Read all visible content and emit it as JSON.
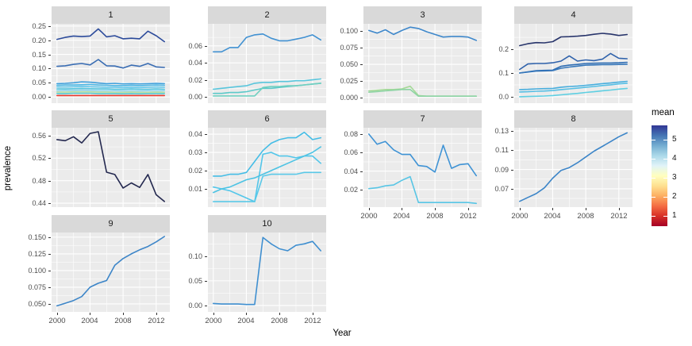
{
  "figure": {
    "ylabel": "prevalence",
    "xlabel": "Year"
  },
  "legend": {
    "title": "mean",
    "tick_labels": [
      "5",
      "4",
      "3",
      "2",
      "1"
    ],
    "gradient_top_to_bottom": [
      "#313695",
      "#4575b4",
      "#74add1",
      "#abd9e9",
      "#e0f3f8",
      "#ffffbf",
      "#fee090",
      "#fdae61",
      "#f46d43",
      "#d73027",
      "#a50026"
    ]
  },
  "chart_data": {
    "type": "line",
    "title": "",
    "xlabel": "Year",
    "ylabel": "prevalence",
    "x": [
      2000,
      2001,
      2002,
      2003,
      2004,
      2005,
      2006,
      2007,
      2008,
      2009,
      2010,
      2011,
      2012,
      2013
    ],
    "xlim": [
      1999.35,
      2013.65
    ],
    "x_tick_labels": [
      "2000",
      "2004",
      "2008",
      "2012"
    ],
    "x_tick_values": [
      2000,
      2004,
      2008,
      2012
    ],
    "x_minor_values": [
      2002,
      2006,
      2010
    ],
    "facets": [
      {
        "title": "1",
        "row": 0,
        "col": 0,
        "show_x_axis": false,
        "ylim": [
          -0.022,
          0.258
        ],
        "ytick_labels": [
          "0.00",
          "0.05",
          "0.10",
          "0.15",
          "0.20",
          "0.25"
        ],
        "ytick_values": [
          0.0,
          0.05,
          0.1,
          0.15,
          0.2,
          0.25
        ],
        "series": [
          {
            "color": "#2c4b9b",
            "values": [
              0.203,
              0.21,
              0.215,
              0.213,
              0.215,
              0.24,
              0.212,
              0.216,
              0.205,
              0.207,
              0.205,
              0.232,
              0.216,
              0.195
            ]
          },
          {
            "color": "#3a6db3",
            "values": [
              0.108,
              0.11,
              0.115,
              0.118,
              0.113,
              0.132,
              0.11,
              0.109,
              0.102,
              0.112,
              0.108,
              0.118,
              0.106,
              0.104
            ]
          },
          {
            "color": "#3e9ed9",
            "values": [
              0.047,
              0.048,
              0.05,
              0.053,
              0.052,
              0.049,
              0.047,
              0.048,
              0.046,
              0.047,
              0.046,
              0.047,
              0.048,
              0.047
            ]
          },
          {
            "color": "#4db8e6",
            "values": [
              0.041,
              0.042,
              0.042,
              0.043,
              0.044,
              0.042,
              0.041,
              0.04,
              0.04,
              0.041,
              0.04,
              0.041,
              0.042,
              0.041
            ]
          },
          {
            "color": "#62c8ec",
            "values": [
              0.035,
              0.035,
              0.036,
              0.037,
              0.036,
              0.035,
              0.034,
              0.034,
              0.033,
              0.034,
              0.033,
              0.034,
              0.035,
              0.034
            ]
          },
          {
            "color": "#52c5e0",
            "values": [
              0.028,
              0.028,
              0.029,
              0.03,
              0.029,
              0.028,
              0.028,
              0.027,
              0.027,
              0.028,
              0.027,
              0.027,
              0.028,
              0.027
            ]
          },
          {
            "color": "#8fd2ec",
            "values": [
              0.022,
              0.023,
              0.023,
              0.024,
              0.023,
              0.022,
              0.022,
              0.022,
              0.021,
              0.022,
              0.021,
              0.022,
              0.022,
              0.022
            ]
          },
          {
            "color": "#b9e0a5",
            "values": [
              0.017,
              0.017,
              0.018,
              0.018,
              0.018,
              0.017,
              0.017,
              0.016,
              0.016,
              0.017,
              0.016,
              0.016,
              0.017,
              0.016
            ]
          },
          {
            "color": "#55c9d2",
            "values": [
              0.012,
              0.012,
              0.013,
              0.013,
              0.013,
              0.012,
              0.012,
              0.012,
              0.011,
              0.012,
              0.011,
              0.012,
              0.012,
              0.012
            ]
          },
          {
            "color": "#e8392d",
            "values": [
              0.005,
              0.005,
              0.005,
              0.005,
              0.005,
              0.005,
              0.005,
              0.005,
              0.005,
              0.005,
              0.005,
              0.005,
              0.005,
              0.005
            ]
          }
        ]
      },
      {
        "title": "2",
        "row": 0,
        "col": 1,
        "show_x_axis": false,
        "ylim": [
          -0.0075,
          0.086
        ],
        "ytick_labels": [
          "0.00",
          "0.02",
          "0.04",
          "0.06"
        ],
        "ytick_values": [
          0.0,
          0.02,
          0.04,
          0.06
        ],
        "series": [
          {
            "color": "#4191d2",
            "values": [
              0.053,
              0.053,
              0.058,
              0.058,
              0.07,
              0.073,
              0.074,
              0.069,
              0.066,
              0.066,
              0.068,
              0.07,
              0.073,
              0.067
            ]
          },
          {
            "color": "#58c5dc",
            "values": [
              0.009,
              0.01,
              0.011,
              0.012,
              0.013,
              0.016,
              0.017,
              0.017,
              0.018,
              0.018,
              0.019,
              0.019,
              0.02,
              0.021
            ]
          },
          {
            "color": "#5cc9c9",
            "values": [
              0.004,
              0.004,
              0.005,
              0.005,
              0.006,
              0.008,
              0.01,
              0.01,
              0.011,
              0.012,
              0.013,
              0.014,
              0.015,
              0.016
            ]
          },
          {
            "color": "#6fcfc0",
            "values": [
              0.001,
              0.001,
              0.001,
              0.001,
              0.001,
              0.001,
              0.011,
              0.012,
              0.012,
              0.013,
              0.013,
              0.014,
              0.015,
              0.016
            ]
          }
        ]
      },
      {
        "title": "3",
        "row": 0,
        "col": 2,
        "show_x_axis": false,
        "ylim": [
          -0.0085,
          0.111
        ],
        "ytick_labels": [
          "0.000",
          "0.025",
          "0.050",
          "0.075",
          "0.100"
        ],
        "ytick_values": [
          0.0,
          0.025,
          0.05,
          0.075,
          0.1
        ],
        "series": [
          {
            "color": "#3f88cb",
            "values": [
              0.101,
              0.097,
              0.102,
              0.095,
              0.101,
              0.106,
              0.104,
              0.099,
              0.095,
              0.091,
              0.092,
              0.092,
              0.091,
              0.086
            ]
          },
          {
            "color": "#a5d998",
            "values": [
              0.01,
              0.011,
              0.012,
              0.012,
              0.013,
              0.017,
              0.003,
              0.002,
              0.002,
              0.002,
              0.002,
              0.002,
              0.002,
              0.002
            ]
          },
          {
            "color": "#8ed4a5",
            "values": [
              0.008,
              0.009,
              0.01,
              0.011,
              0.012,
              0.012,
              0.002,
              0.002,
              0.002,
              0.002,
              0.002,
              0.002,
              0.002,
              0.002
            ]
          }
        ]
      },
      {
        "title": "4",
        "row": 0,
        "col": 3,
        "show_x_axis": false,
        "ylim": [
          -0.027,
          0.307
        ],
        "ytick_labels": [
          "0.0",
          "0.1",
          "0.2"
        ],
        "ytick_values": [
          0.0,
          0.1,
          0.2
        ],
        "series": [
          {
            "color": "#28356b",
            "values": [
              0.215,
              0.223,
              0.228,
              0.227,
              0.232,
              0.252,
              0.253,
              0.255,
              0.258,
              0.263,
              0.267,
              0.264,
              0.258,
              0.262
            ]
          },
          {
            "color": "#2f62ab",
            "values": [
              0.115,
              0.138,
              0.14,
              0.14,
              0.143,
              0.15,
              0.172,
              0.15,
              0.155,
              0.152,
              0.158,
              0.182,
              0.162,
              0.16
            ]
          },
          {
            "color": "#2d6cb3",
            "values": [
              0.1,
              0.105,
              0.11,
              0.111,
              0.112,
              0.128,
              0.133,
              0.136,
              0.14,
              0.141,
              0.142,
              0.142,
              0.143,
              0.145
            ]
          },
          {
            "color": "#3576ba",
            "values": [
              0.1,
              0.104,
              0.108,
              0.109,
              0.11,
              0.12,
              0.125,
              0.129,
              0.133,
              0.134,
              0.135,
              0.135,
              0.136,
              0.137
            ]
          },
          {
            "color": "#47aede",
            "values": [
              0.03,
              0.031,
              0.033,
              0.034,
              0.035,
              0.04,
              0.043,
              0.045,
              0.048,
              0.051,
              0.055,
              0.058,
              0.062,
              0.065
            ]
          },
          {
            "color": "#55bfe5",
            "values": [
              0.02,
              0.021,
              0.023,
              0.024,
              0.026,
              0.03,
              0.033,
              0.036,
              0.04,
              0.043,
              0.047,
              0.05,
              0.054,
              0.057
            ]
          },
          {
            "color": "#5ecfe2",
            "values": [
              0.0,
              0.001,
              0.002,
              0.003,
              0.005,
              0.008,
              0.011,
              0.014,
              0.018,
              0.021,
              0.025,
              0.028,
              0.032,
              0.035
            ]
          }
        ]
      },
      {
        "title": "5",
        "row": 1,
        "col": 0,
        "show_x_axis": false,
        "ylim": [
          0.433,
          0.574
        ],
        "ytick_labels": [
          "0.44",
          "0.48",
          "0.52",
          "0.56"
        ],
        "ytick_values": [
          0.44,
          0.48,
          0.52,
          0.56
        ],
        "series": [
          {
            "color": "#23284f",
            "values": [
              0.553,
              0.551,
              0.558,
              0.547,
              0.564,
              0.567,
              0.495,
              0.491,
              0.467,
              0.476,
              0.468,
              0.491,
              0.455,
              0.443
            ]
          }
        ]
      },
      {
        "title": "6",
        "row": 1,
        "col": 1,
        "show_x_axis": false,
        "ylim": [
          0.0,
          0.0435
        ],
        "ytick_labels": [
          "0.01",
          "0.02",
          "0.03",
          "0.04"
        ],
        "ytick_values": [
          0.01,
          0.02,
          0.03,
          0.04
        ],
        "series": [
          {
            "color": "#44bde6",
            "values": [
              0.017,
              0.017,
              0.018,
              0.018,
              0.019,
              0.025,
              0.031,
              0.035,
              0.037,
              0.038,
              0.038,
              0.041,
              0.037,
              0.038
            ]
          },
          {
            "color": "#52c6ea",
            "values": [
              0.011,
              0.01,
              0.009,
              0.007,
              0.005,
              0.003,
              0.029,
              0.03,
              0.028,
              0.028,
              0.027,
              0.028,
              0.028,
              0.024
            ]
          },
          {
            "color": "#4cc3e4",
            "values": [
              0.008,
              0.01,
              0.011,
              0.013,
              0.015,
              0.016,
              0.018,
              0.02,
              0.022,
              0.024,
              0.026,
              0.028,
              0.03,
              0.033
            ]
          },
          {
            "color": "#5ac9e8",
            "values": [
              0.003,
              0.003,
              0.003,
              0.003,
              0.003,
              0.003,
              0.017,
              0.018,
              0.018,
              0.018,
              0.018,
              0.019,
              0.019,
              0.019
            ]
          }
        ]
      },
      {
        "title": "7",
        "row": 1,
        "col": 2,
        "show_x_axis": true,
        "ylim": [
          0.001,
          0.0869
        ],
        "ytick_labels": [
          "0.02",
          "0.04",
          "0.06",
          "0.08"
        ],
        "ytick_values": [
          0.02,
          0.04,
          0.06,
          0.08
        ],
        "series": [
          {
            "color": "#3f93d5",
            "values": [
              0.08,
              0.069,
              0.072,
              0.063,
              0.058,
              0.058,
              0.046,
              0.045,
              0.039,
              0.068,
              0.043,
              0.047,
              0.048,
              0.035
            ]
          },
          {
            "color": "#57c5e5",
            "values": [
              0.021,
              0.022,
              0.024,
              0.025,
              0.03,
              0.034,
              0.006,
              0.006,
              0.006,
              0.006,
              0.006,
              0.006,
              0.006,
              0.005
            ]
          }
        ]
      },
      {
        "title": "8",
        "row": 1,
        "col": 3,
        "show_x_axis": true,
        "ylim": [
          0.051,
          0.1333
        ],
        "ytick_labels": [
          "0.07",
          "0.09",
          "0.11",
          "0.13"
        ],
        "ytick_values": [
          0.07,
          0.09,
          0.11,
          0.13
        ],
        "series": [
          {
            "color": "#3c85c8",
            "values": [
              0.057,
              0.061,
              0.065,
              0.071,
              0.081,
              0.089,
              0.092,
              0.097,
              0.103,
              0.109,
              0.114,
              0.119,
              0.124,
              0.128
            ]
          }
        ]
      },
      {
        "title": "9",
        "row": 2,
        "col": 0,
        "show_x_axis": true,
        "ylim": [
          0.038,
          0.157
        ],
        "ytick_labels": [
          "0.050",
          "0.075",
          "0.100",
          "0.125",
          "0.150"
        ],
        "ytick_values": [
          0.05,
          0.075,
          0.1,
          0.125,
          0.15
        ],
        "series": [
          {
            "color": "#3c85c8",
            "values": [
              0.047,
              0.051,
              0.055,
              0.061,
              0.075,
              0.081,
              0.085,
              0.108,
              0.118,
              0.125,
              0.131,
              0.136,
              0.143,
              0.151
            ]
          }
        ]
      },
      {
        "title": "10",
        "row": 2,
        "col": 1,
        "show_x_axis": true,
        "ylim": [
          -0.013,
          0.148
        ],
        "ytick_labels": [
          "0.00",
          "0.05",
          "0.10"
        ],
        "ytick_values": [
          0.0,
          0.05,
          0.1
        ],
        "series": [
          {
            "color": "#3f8fd0",
            "values": [
              0.004,
              0.003,
              0.003,
              0.003,
              0.002,
              0.002,
              0.138,
              0.125,
              0.115,
              0.111,
              0.122,
              0.125,
              0.13,
              0.111
            ]
          }
        ]
      }
    ]
  }
}
